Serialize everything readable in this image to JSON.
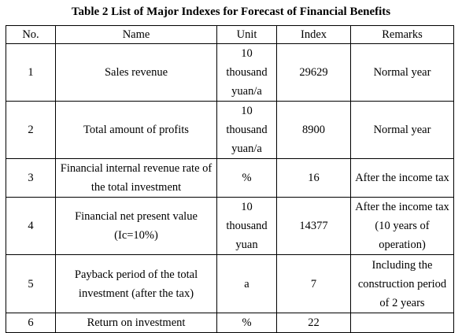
{
  "table": {
    "caption": "Table 2 List of Major Indexes for Forecast of Financial Benefits",
    "headers": [
      "No.",
      "Name",
      "Unit",
      "Index",
      "Remarks"
    ],
    "rows": [
      {
        "no": "1",
        "name": "Sales revenue",
        "unit": "10 thousand yuan/a",
        "index": "29629",
        "remarks": "Normal year"
      },
      {
        "no": "2",
        "name": "Total amount of profits",
        "unit": "10 thousand yuan/a",
        "index": "8900",
        "remarks": "Normal year"
      },
      {
        "no": "3",
        "name": "Financial internal revenue rate of the total investment",
        "unit": "%",
        "index": "16",
        "remarks": "After the income tax"
      },
      {
        "no": "4",
        "name": "Financial net present value (Ic=10%)",
        "unit": "10 thousand yuan",
        "index": "14377",
        "remarks": "After the income tax (10 years of operation)"
      },
      {
        "no": "5",
        "name": "Payback period of the total investment (after the tax)",
        "unit": "a",
        "index": "7",
        "remarks": "Including the construction period of 2 years"
      },
      {
        "no": "6",
        "name": "Return on investment",
        "unit": "%",
        "index": "22",
        "remarks": ""
      }
    ]
  }
}
